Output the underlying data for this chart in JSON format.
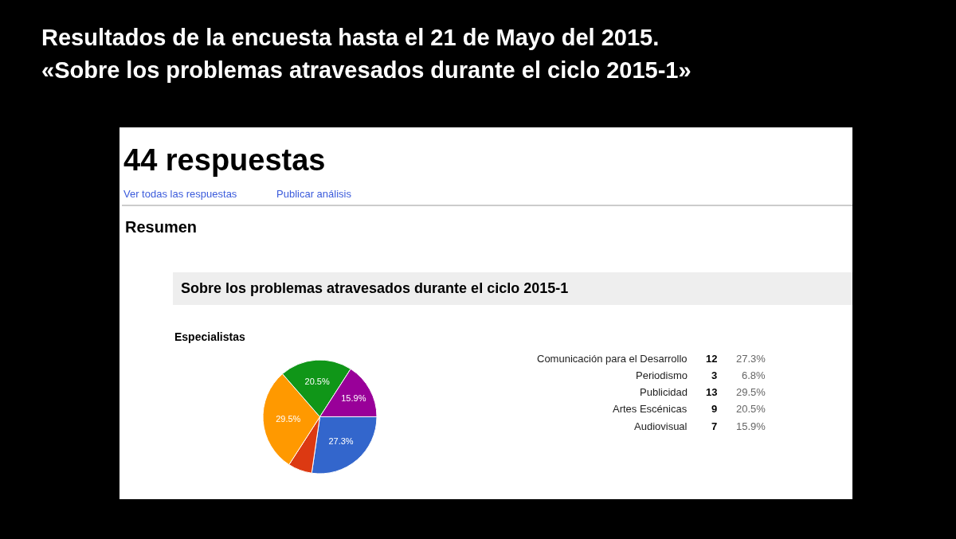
{
  "chart_data": [
    {
      "type": "pie",
      "title": "Resultados de la encuesta hasta el 21 de Mayo del 2015.\n«Sobre los problemas atravesados durante el ciclo 2015-1»",
      "subtitle": "Especialistas",
      "annotations": [
        "44 respuestas",
        "Ver todas las respuestas",
        "Publicar análisis",
        "Resumen",
        "Sobre los problemas atravesados durante el ciclo 2015-1"
      ],
      "categories": [
        null,
        null,
        null,
        null,
        null
      ],
      "values": [
        27.3,
        6.8,
        29.5,
        20.5,
        15.9
      ],
      "value_labels": [
        "27.3%",
        null,
        "29.5%",
        "20.5%",
        "15.9%"
      ],
      "colors": [
        "#3366cc",
        "#dc3912",
        "#ff9900",
        "#109618",
        "#990099"
      ]
    },
    {
      "type": "other",
      "categories": [
        "Comunicación para el Desarrollo",
        "Periodismo",
        "Publicidad",
        "Artes Escénicas",
        "Audiovisual"
      ],
      "annotations": [
        "12",
        "27.3%",
        "3",
        "6.8%",
        "13",
        "29.5%",
        "9",
        "20.5%",
        "7",
        "15.9%"
      ]
    }
  ]
}
